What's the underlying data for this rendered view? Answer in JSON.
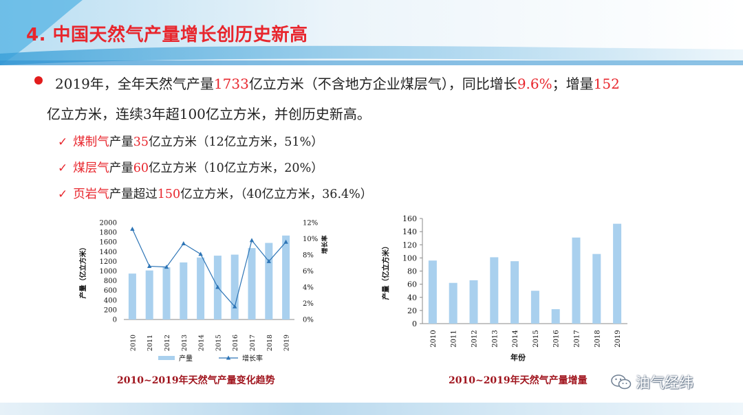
{
  "slide": {
    "title": "4. 中国天然气产量增长创历史新高",
    "line1": {
      "a": "2019年，全年天然气产量",
      "b": "1733",
      "c": "亿立方米（不含地方企业煤层气），同比增长",
      "d": "9.6%",
      "e": "；增量",
      "f": "152"
    },
    "line2": "亿立方米，连续3年超100亿立方米，并创历史新高。",
    "subs": [
      {
        "check": "✓",
        "name": "煤制气",
        "mid": "产量",
        "val": "35",
        "rest": "亿立方米（12亿立方米，51%）"
      },
      {
        "check": "✓",
        "name": "煤层气",
        "mid": "产量",
        "val": "60",
        "rest": "亿立方米（10亿立方米，20%）"
      },
      {
        "check": "✓",
        "name": "页岩气",
        "mid": "产量超过",
        "val": "150",
        "rest": "亿立方米，（40亿立方米，36.4%）"
      }
    ],
    "captions": [
      "2010~2019年天然气产量变化趋势",
      "2010~2019年天然气产量增量"
    ],
    "watermark": "油气经纬",
    "watermark_icon": "wechat-icon"
  },
  "chart_data": [
    {
      "type": "bar",
      "categories": [
        "2010",
        "2011",
        "2012",
        "2013",
        "2014",
        "2015",
        "2016",
        "2017",
        "2018",
        "2019"
      ],
      "series": [
        {
          "name": "产量",
          "type": "bar",
          "axis": "left",
          "values": [
            948,
            1012,
            1077,
            1178,
            1280,
            1318,
            1339,
            1474,
            1581,
            1733
          ]
        },
        {
          "name": "增长率",
          "type": "line",
          "axis": "right",
          "values": [
            11.2,
            6.6,
            6.5,
            9.4,
            8.1,
            4.0,
            1.6,
            9.8,
            7.2,
            9.6
          ]
        }
      ],
      "ylabel": "产量（亿立方米）",
      "y2label": "增长率",
      "xlabel": "",
      "ylim": [
        0,
        2000
      ],
      "yticks": [
        "0",
        "200",
        "400",
        "600",
        "800",
        "1000",
        "1200",
        "1400",
        "1600",
        "1800",
        "2000"
      ],
      "y2lim": [
        0,
        12
      ],
      "y2ticks": [
        "0%",
        "2%",
        "4%",
        "6%",
        "8%",
        "10%",
        "12%"
      ],
      "legend": "bottom",
      "bar_color": "#a9d0ee",
      "line_color": "#2e75b6"
    },
    {
      "type": "bar",
      "categories": [
        "2010",
        "2011",
        "2012",
        "2013",
        "2014",
        "2015",
        "2016",
        "2017",
        "2018",
        "2019"
      ],
      "values": [
        96,
        62,
        66,
        101,
        95,
        50,
        22,
        131,
        106,
        152
      ],
      "ylabel": "产量（亿立方米）",
      "xlabel": "年份",
      "ylim": [
        0,
        160
      ],
      "yticks": [
        "0",
        "20",
        "40",
        "60",
        "80",
        "100",
        "120",
        "140",
        "160"
      ],
      "bar_color": "#a9d0ee"
    }
  ]
}
